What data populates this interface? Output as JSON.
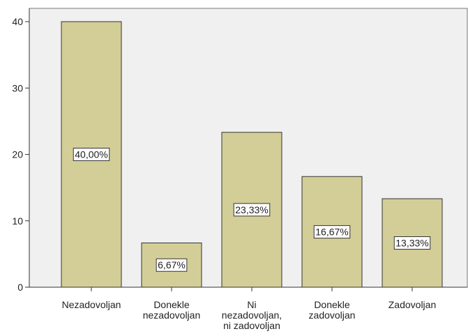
{
  "chart_data": {
    "type": "bar",
    "categories": [
      "Nezadovoljan",
      "Donekle\nnezadovoljan",
      "Ni\nnezadovoljan,\nni zadovoljan",
      "Donekle\nzadovoljan",
      "Zadovoljan"
    ],
    "values": [
      40,
      6.67,
      23.33,
      16.67,
      13.33
    ],
    "value_labels": [
      "40,00%",
      "6,67%",
      "23,33%",
      "16,67%",
      "13,33%"
    ],
    "color": "#d3ce97",
    "ylim": [
      0,
      42
    ],
    "yticks": [
      0,
      10,
      20,
      30,
      40
    ]
  }
}
